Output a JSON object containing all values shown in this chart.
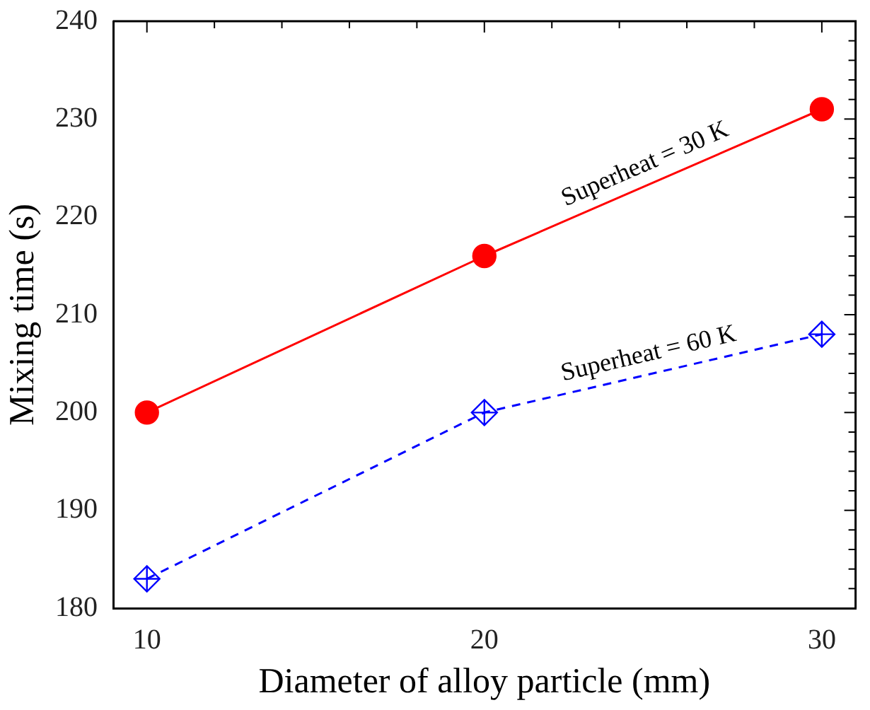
{
  "chart_data": {
    "type": "line",
    "xlabel": "Diameter of alloy particle (mm)",
    "ylabel": "Mixing time (s)",
    "x": [
      10,
      20,
      30
    ],
    "series": [
      {
        "name": "Superheat = 30 K",
        "color": "#ff0000",
        "values": [
          200,
          216,
          231
        ],
        "marker": "circle",
        "line_style": "solid"
      },
      {
        "name": "Superheat = 60 K",
        "color": "#0000ff",
        "values": [
          183,
          200,
          208
        ],
        "marker": "diamond",
        "line_style": "dashed"
      }
    ],
    "xlim": [
      9,
      31
    ],
    "xticks": [
      10,
      {
        "value": 12,
        "label": null
      },
      {
        "value": 14,
        "label": null
      },
      {
        "value": 16,
        "label": null
      },
      {
        "value": 18,
        "label": null
      },
      20,
      {
        "value": 22,
        "label": null
      },
      {
        "value": 24,
        "label": null
      },
      {
        "value": 26,
        "label": null
      },
      {
        "value": 28,
        "label": null
      },
      30
    ],
    "ylim": [
      180,
      240
    ],
    "yticks": [
      180,
      {
        "value": 182,
        "label": null
      },
      {
        "value": 184,
        "label": null
      },
      {
        "value": 186,
        "label": null
      },
      {
        "value": 188,
        "label": null
      },
      190,
      {
        "value": 192,
        "label": null
      },
      {
        "value": 194,
        "label": null
      },
      {
        "value": 196,
        "label": null
      },
      {
        "value": 198,
        "label": null
      },
      200,
      {
        "value": 202,
        "label": null
      },
      {
        "value": 204,
        "label": null
      },
      {
        "value": 206,
        "label": null
      },
      {
        "value": 208,
        "label": null
      },
      210,
      {
        "value": 212,
        "label": null
      },
      {
        "value": 214,
        "label": null
      },
      {
        "value": 216,
        "label": null
      },
      {
        "value": 218,
        "label": null
      },
      220,
      {
        "value": 222,
        "label": null
      },
      {
        "value": 224,
        "label": null
      },
      {
        "value": 226,
        "label": null
      },
      {
        "value": 228,
        "label": null
      },
      230,
      {
        "value": 232,
        "label": null
      },
      {
        "value": 234,
        "label": null
      },
      {
        "value": 236,
        "label": null
      },
      {
        "value": 238,
        "label": null
      },
      240
    ],
    "grid": false,
    "legend": false
  }
}
